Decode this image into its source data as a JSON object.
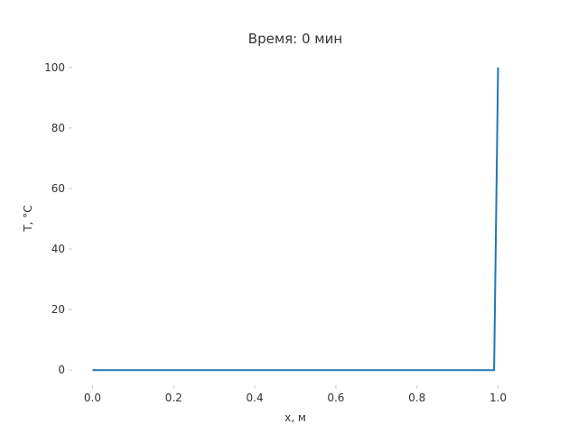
{
  "chart_data": {
    "type": "line",
    "title": "Время: 0 мин",
    "xlabel": "x, м",
    "ylabel": "T, °C",
    "xlim": [
      -0.05,
      1.05
    ],
    "ylim": [
      -5,
      105
    ],
    "xticks": [
      0.0,
      0.2,
      0.4,
      0.6,
      0.8,
      1.0
    ],
    "xtick_labels": [
      "0.0",
      "0.2",
      "0.4",
      "0.6",
      "0.8",
      "1.0"
    ],
    "yticks": [
      0,
      20,
      40,
      60,
      80,
      100
    ],
    "ytick_labels": [
      "0",
      "20",
      "40",
      "60",
      "80",
      "100"
    ],
    "grid": false,
    "series": [
      {
        "color": "#1f77b4",
        "x": [
          0.0,
          0.99,
          1.0
        ],
        "y": [
          0,
          0,
          100
        ]
      }
    ]
  }
}
